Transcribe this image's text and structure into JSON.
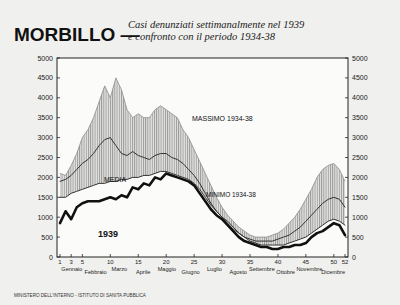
{
  "chart_data": {
    "type": "line",
    "title": "MORBILLO —",
    "subtitle": [
      "Casi denunziati settimanalmente nel 1939",
      "e confronto con il periodo 1934-38"
    ],
    "footer": "MINISTERO DELL'INTERNO - ISTITUTO DI SANITA PUBBLICA",
    "x": [
      1,
      2,
      3,
      4,
      5,
      6,
      7,
      8,
      9,
      10,
      11,
      12,
      13,
      14,
      15,
      16,
      17,
      18,
      19,
      20,
      21,
      22,
      23,
      24,
      25,
      26,
      27,
      28,
      29,
      30,
      31,
      32,
      33,
      34,
      35,
      36,
      37,
      38,
      39,
      40,
      41,
      42,
      43,
      44,
      45,
      46,
      47,
      48,
      49,
      50,
      51,
      52
    ],
    "xlim": [
      1,
      52
    ],
    "xticks": [
      1,
      3,
      5,
      10,
      15,
      20,
      25,
      30,
      35,
      40,
      45,
      50,
      52
    ],
    "month_labels": [
      "Gennaio",
      "Febbraio",
      "Marzo",
      "Aprile",
      "Maggio",
      "Giugno",
      "Luglio",
      "Agosto",
      "Settembre",
      "Ottobre",
      "Novembre",
      "Dicembre"
    ],
    "ylim": [
      0,
      5000
    ],
    "yticks": [
      0,
      500,
      1000,
      1500,
      2000,
      2500,
      3000,
      3500,
      4000,
      4500,
      5000
    ],
    "y2lim": [
      0,
      5000
    ],
    "y2ticks": [
      0,
      500,
      1000,
      1500,
      2000,
      2500,
      3000,
      3500,
      4000,
      4500,
      5000
    ],
    "grid": false,
    "series": [
      {
        "name": "MASSIMO 1934-38",
        "type": "area",
        "color": "#8c8c8c",
        "values": [
          2100,
          2050,
          2300,
          2600,
          3000,
          3200,
          3500,
          3900,
          4300,
          4000,
          4500,
          4200,
          3700,
          3500,
          3600,
          3500,
          3500,
          3700,
          3800,
          3700,
          3600,
          3500,
          3200,
          3000,
          2700,
          2400,
          2100,
          1800,
          1500,
          1250,
          1050,
          900,
          750,
          650,
          550,
          500,
          500,
          500,
          550,
          600,
          700,
          850,
          1000,
          1200,
          1450,
          1700,
          2000,
          2200,
          2300,
          2350,
          2200,
          1900
        ]
      },
      {
        "name": "MEDIA",
        "type": "line",
        "color": "#333333",
        "values": [
          1900,
          1950,
          2050,
          2200,
          2350,
          2450,
          2600,
          2800,
          2950,
          3000,
          2800,
          2600,
          2550,
          2650,
          2550,
          2500,
          2450,
          2550,
          2600,
          2600,
          2500,
          2450,
          2350,
          2200,
          2050,
          1850,
          1600,
          1350,
          1150,
          1000,
          850,
          700,
          600,
          500,
          450,
          400,
          400,
          400,
          400,
          450,
          500,
          550,
          650,
          750,
          900,
          1050,
          1200,
          1350,
          1450,
          1500,
          1450,
          1250
        ]
      },
      {
        "name": "MINIMO 1934-38",
        "type": "line",
        "color": "#333333",
        "values": [
          1500,
          1500,
          1600,
          1650,
          1700,
          1750,
          1800,
          1850,
          1850,
          1900,
          1900,
          1950,
          1950,
          2000,
          2000,
          2050,
          2050,
          2100,
          2150,
          2150,
          2100,
          2050,
          2000,
          1950,
          1850,
          1700,
          1500,
          1300,
          1150,
          1000,
          900,
          750,
          600,
          500,
          400,
          350,
          300,
          300,
          300,
          300,
          300,
          350,
          400,
          450,
          500,
          600,
          700,
          800,
          900,
          950,
          900,
          800
        ]
      },
      {
        "name": "1939",
        "type": "line",
        "color": "#111111",
        "values": [
          850,
          1150,
          950,
          1250,
          1350,
          1400,
          1400,
          1400,
          1450,
          1500,
          1450,
          1550,
          1500,
          1750,
          1700,
          1850,
          1800,
          2000,
          1950,
          2100,
          2050,
          2000,
          1950,
          1900,
          1800,
          1600,
          1400,
          1200,
          1050,
          950,
          800,
          650,
          500,
          400,
          350,
          300,
          250,
          250,
          200,
          200,
          250,
          250,
          300,
          300,
          350,
          500,
          600,
          650,
          750,
          850,
          800,
          550
        ]
      }
    ]
  }
}
